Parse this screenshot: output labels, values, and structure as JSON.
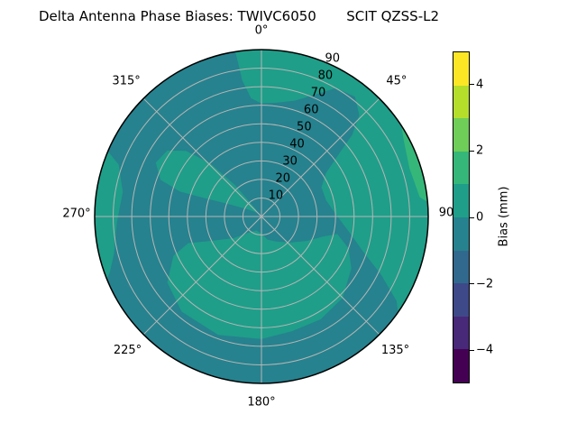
{
  "title": "Delta Antenna Phase Biases: TWIVC6050       SCIT QZSS-L2",
  "chart_data": {
    "type": "heatmap",
    "subtype": "polar_filled_contour",
    "description": "Polar sky plot of delta antenna phase biases (bias in mm) by azimuth (0-360 deg, 0 at top, clockwise) and radial zenith angle 0-90",
    "angular_axis": {
      "tick_labels": [
        {
          "label": "0°",
          "angle": 0
        },
        {
          "label": "45°",
          "angle": 45
        },
        {
          "label": "90",
          "angle": 90
        },
        {
          "label": "135°",
          "angle": 135
        },
        {
          "label": "180°",
          "angle": 180
        },
        {
          "label": "225°",
          "angle": 225
        },
        {
          "label": "270°",
          "angle": 270
        },
        {
          "label": "315°",
          "angle": 315
        }
      ]
    },
    "radial_axis": {
      "tick_values": [
        10,
        20,
        30,
        40,
        50,
        60,
        70,
        80,
        90
      ],
      "label_angle_deg": 22.5,
      "max": 90,
      "grid_ring_values": [
        10,
        20,
        30,
        40,
        50,
        60,
        70,
        80
      ]
    },
    "grid": {
      "on": true,
      "color": "#b6b6b6",
      "outline_color": "#000000"
    },
    "colorbar": {
      "label": "Bias (mm)",
      "tick_labels": [
        "4",
        "2",
        "0",
        "−2",
        "−4"
      ],
      "tick_values": [
        4,
        2,
        0,
        -2,
        -4
      ],
      "value_range": [
        -5,
        5
      ],
      "n_segments": 10,
      "palette_top_to_bottom": [
        "#fde725",
        "#b5de2b",
        "#6ece58",
        "#35b779",
        "#1f9e89",
        "#26828e",
        "#31688e",
        "#3e4989",
        "#482878",
        "#440154"
      ]
    },
    "base_band": {
      "name": "background-band",
      "bias_range_mm": "-1 to 0",
      "color": "#26828e"
    },
    "contour_regions": [
      {
        "name": "outer-ring-right",
        "bias_range_mm": "0 to 1",
        "color": "#1f9e89",
        "edge_arc_deg": [
          351,
          485
        ],
        "inner_boundary_az_r": [
          [
            122,
            86
          ],
          [
            116,
            72
          ],
          [
            109,
            58
          ],
          [
            100,
            48
          ],
          [
            88,
            40
          ],
          [
            76,
            36
          ],
          [
            64,
            36
          ],
          [
            56,
            42
          ],
          [
            51,
            54
          ],
          [
            48,
            66
          ],
          [
            44,
            76
          ],
          [
            38,
            82
          ],
          [
            30,
            80
          ],
          [
            24,
            72
          ],
          [
            16,
            65
          ],
          [
            8,
            62
          ],
          [
            0,
            61
          ],
          [
            355,
            64
          ],
          [
            352,
            74
          ]
        ]
      },
      {
        "name": "outer-arc-left",
        "bias_range_mm": "0 to 1",
        "color": "#1f9e89",
        "edge_arc_deg": [
          248,
          293
        ],
        "inner_boundary_az_r": [
          [
            290,
            82
          ],
          [
            280,
            76
          ],
          [
            268,
            78
          ],
          [
            256,
            82
          ],
          [
            250,
            87
          ]
        ]
      },
      {
        "name": "diagonal-band-upper-left",
        "bias_range_mm": "0 to 1",
        "color": "#1f9e89",
        "boundary_az_r": [
          [
            322,
            5
          ],
          [
            320,
            22
          ],
          [
            316,
            40
          ],
          [
            311,
            54
          ],
          [
            305,
            62
          ],
          [
            297,
            64
          ],
          [
            290,
            58
          ],
          [
            287,
            46
          ],
          [
            288,
            32
          ],
          [
            291,
            18
          ],
          [
            298,
            8
          ],
          [
            310,
            3
          ]
        ]
      },
      {
        "name": "lower-left-blob",
        "bias_range_mm": "0 to 1",
        "color": "#1f9e89",
        "boundary_az_r": [
          [
            103,
            42
          ],
          [
            110,
            50
          ],
          [
            120,
            56
          ],
          [
            135,
            62
          ],
          [
            150,
            64
          ],
          [
            165,
            64
          ],
          [
            180,
            66
          ],
          [
            200,
            68
          ],
          [
            220,
            67
          ],
          [
            235,
            62
          ],
          [
            246,
            52
          ],
          [
            250,
            42
          ],
          [
            244,
            30
          ],
          [
            232,
            19
          ],
          [
            218,
            11
          ],
          [
            200,
            8
          ],
          [
            182,
            9
          ],
          [
            165,
            13
          ],
          [
            148,
            16
          ],
          [
            132,
            21
          ],
          [
            118,
            28
          ],
          [
            108,
            35
          ]
        ]
      },
      {
        "name": "east-edge-sliver",
        "bias_range_mm": "1 to 2",
        "color": "#35b779",
        "edge_arc_deg": [
          57,
          85
        ],
        "inner_boundary_az_r": [
          [
            83,
            86
          ],
          [
            72,
            84
          ],
          [
            62,
            87
          ]
        ]
      }
    ]
  }
}
